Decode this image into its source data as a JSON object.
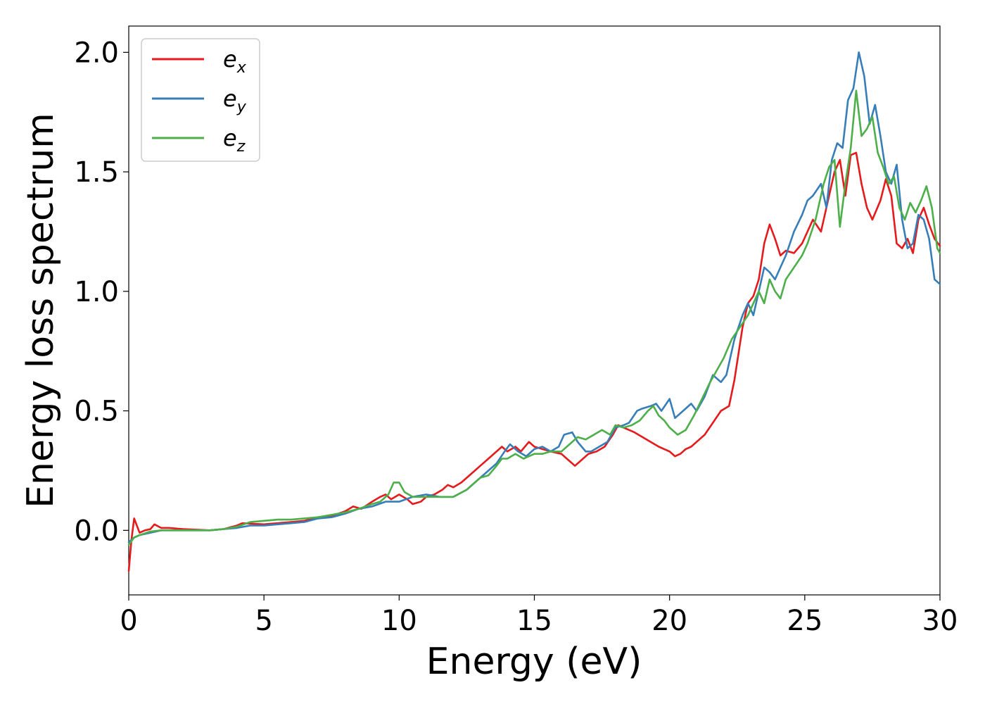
{
  "chart_data": {
    "type": "line",
    "title": "",
    "xlabel": "Energy (eV)",
    "ylabel": "Energy loss spectrum",
    "xlim": [
      0,
      30
    ],
    "ylim": [
      -0.27,
      2.11
    ],
    "xticks": [
      0,
      5,
      10,
      15,
      20,
      25,
      30
    ],
    "xtick_labels": [
      "0",
      "5",
      "10",
      "15",
      "20",
      "25",
      "30"
    ],
    "yticks": [
      0.0,
      0.5,
      1.0,
      1.5,
      2.0
    ],
    "ytick_labels": [
      "0.0",
      "0.5",
      "1.0",
      "1.5",
      "2.0"
    ],
    "grid": false,
    "legend_position": "top-left",
    "series": [
      {
        "name": "e",
        "subscript": "x",
        "color": "#e41a1c",
        "points": [
          [
            0.0,
            -0.17
          ],
          [
            0.1,
            -0.04
          ],
          [
            0.2,
            0.05
          ],
          [
            0.3,
            0.02
          ],
          [
            0.4,
            -0.01
          ],
          [
            0.6,
            0.0
          ],
          [
            0.8,
            0.005
          ],
          [
            0.95,
            0.025
          ],
          [
            1.2,
            0.01
          ],
          [
            1.5,
            0.01
          ],
          [
            2.0,
            0.005
          ],
          [
            3.0,
            0.0
          ],
          [
            3.5,
            0.005
          ],
          [
            4.0,
            0.02
          ],
          [
            4.2,
            0.03
          ],
          [
            5.0,
            0.025
          ],
          [
            5.5,
            0.03
          ],
          [
            6.0,
            0.035
          ],
          [
            6.5,
            0.04
          ],
          [
            7.0,
            0.055
          ],
          [
            7.5,
            0.06
          ],
          [
            8.0,
            0.08
          ],
          [
            8.3,
            0.1
          ],
          [
            8.6,
            0.09
          ],
          [
            9.0,
            0.12
          ],
          [
            9.3,
            0.14
          ],
          [
            9.5,
            0.15
          ],
          [
            9.7,
            0.13
          ],
          [
            10.0,
            0.15
          ],
          [
            10.3,
            0.13
          ],
          [
            10.5,
            0.11
          ],
          [
            10.8,
            0.12
          ],
          [
            11.0,
            0.14
          ],
          [
            11.3,
            0.15
          ],
          [
            11.6,
            0.17
          ],
          [
            11.8,
            0.19
          ],
          [
            12.0,
            0.18
          ],
          [
            12.3,
            0.2
          ],
          [
            12.5,
            0.22
          ],
          [
            12.8,
            0.25
          ],
          [
            13.0,
            0.27
          ],
          [
            13.3,
            0.3
          ],
          [
            13.6,
            0.33
          ],
          [
            13.8,
            0.35
          ],
          [
            14.0,
            0.33
          ],
          [
            14.3,
            0.35
          ],
          [
            14.5,
            0.33
          ],
          [
            14.8,
            0.37
          ],
          [
            15.0,
            0.35
          ],
          [
            15.3,
            0.34
          ],
          [
            15.6,
            0.33
          ],
          [
            16.0,
            0.32
          ],
          [
            16.2,
            0.3
          ],
          [
            16.5,
            0.27
          ],
          [
            16.8,
            0.3
          ],
          [
            17.0,
            0.32
          ],
          [
            17.3,
            0.33
          ],
          [
            17.6,
            0.35
          ],
          [
            17.9,
            0.4
          ],
          [
            18.1,
            0.44
          ],
          [
            18.3,
            0.43
          ],
          [
            18.5,
            0.42
          ],
          [
            18.7,
            0.41
          ],
          [
            19.0,
            0.39
          ],
          [
            19.3,
            0.37
          ],
          [
            19.6,
            0.35
          ],
          [
            19.8,
            0.34
          ],
          [
            20.0,
            0.33
          ],
          [
            20.2,
            0.31
          ],
          [
            20.4,
            0.32
          ],
          [
            20.6,
            0.34
          ],
          [
            20.8,
            0.35
          ],
          [
            21.0,
            0.37
          ],
          [
            21.3,
            0.4
          ],
          [
            21.6,
            0.45
          ],
          [
            21.9,
            0.5
          ],
          [
            22.2,
            0.52
          ],
          [
            22.4,
            0.63
          ],
          [
            22.7,
            0.85
          ],
          [
            22.9,
            0.95
          ],
          [
            23.1,
            0.98
          ],
          [
            23.3,
            1.05
          ],
          [
            23.5,
            1.2
          ],
          [
            23.7,
            1.28
          ],
          [
            23.9,
            1.22
          ],
          [
            24.1,
            1.15
          ],
          [
            24.3,
            1.17
          ],
          [
            24.6,
            1.16
          ],
          [
            24.9,
            1.2
          ],
          [
            25.1,
            1.25
          ],
          [
            25.3,
            1.3
          ],
          [
            25.6,
            1.25
          ],
          [
            25.9,
            1.4
          ],
          [
            26.1,
            1.5
          ],
          [
            26.3,
            1.55
          ],
          [
            26.5,
            1.4
          ],
          [
            26.7,
            1.57
          ],
          [
            26.9,
            1.58
          ],
          [
            27.1,
            1.45
          ],
          [
            27.3,
            1.35
          ],
          [
            27.5,
            1.3
          ],
          [
            27.8,
            1.38
          ],
          [
            28.0,
            1.47
          ],
          [
            28.2,
            1.4
          ],
          [
            28.4,
            1.2
          ],
          [
            28.6,
            1.18
          ],
          [
            28.8,
            1.22
          ],
          [
            29.0,
            1.16
          ],
          [
            29.2,
            1.3
          ],
          [
            29.4,
            1.35
          ],
          [
            29.6,
            1.28
          ],
          [
            29.8,
            1.22
          ],
          [
            30.0,
            1.19
          ]
        ]
      },
      {
        "name": "e",
        "subscript": "y",
        "color": "#377eb8",
        "points": [
          [
            0.0,
            -0.05
          ],
          [
            0.2,
            -0.03
          ],
          [
            0.4,
            -0.02
          ],
          [
            0.8,
            -0.01
          ],
          [
            1.2,
            0.0
          ],
          [
            2.0,
            0.0
          ],
          [
            3.0,
            0.0
          ],
          [
            3.5,
            0.005
          ],
          [
            4.0,
            0.01
          ],
          [
            4.5,
            0.02
          ],
          [
            5.0,
            0.02
          ],
          [
            5.5,
            0.025
          ],
          [
            6.0,
            0.03
          ],
          [
            6.5,
            0.035
          ],
          [
            7.0,
            0.05
          ],
          [
            7.5,
            0.055
          ],
          [
            8.0,
            0.07
          ],
          [
            8.5,
            0.09
          ],
          [
            9.0,
            0.1
          ],
          [
            9.5,
            0.12
          ],
          [
            10.0,
            0.12
          ],
          [
            10.5,
            0.14
          ],
          [
            11.0,
            0.15
          ],
          [
            11.5,
            0.14
          ],
          [
            12.0,
            0.14
          ],
          [
            12.5,
            0.17
          ],
          [
            12.8,
            0.2
          ],
          [
            13.0,
            0.22
          ],
          [
            13.3,
            0.25
          ],
          [
            13.6,
            0.28
          ],
          [
            13.9,
            0.33
          ],
          [
            14.1,
            0.36
          ],
          [
            14.4,
            0.33
          ],
          [
            14.7,
            0.31
          ],
          [
            15.0,
            0.34
          ],
          [
            15.3,
            0.35
          ],
          [
            15.6,
            0.33
          ],
          [
            15.9,
            0.35
          ],
          [
            16.1,
            0.4
          ],
          [
            16.4,
            0.41
          ],
          [
            16.6,
            0.37
          ],
          [
            16.9,
            0.33
          ],
          [
            17.1,
            0.33
          ],
          [
            17.4,
            0.35
          ],
          [
            17.7,
            0.37
          ],
          [
            18.0,
            0.43
          ],
          [
            18.3,
            0.44
          ],
          [
            18.5,
            0.45
          ],
          [
            18.8,
            0.5
          ],
          [
            19.0,
            0.51
          ],
          [
            19.3,
            0.52
          ],
          [
            19.5,
            0.53
          ],
          [
            19.7,
            0.5
          ],
          [
            20.0,
            0.55
          ],
          [
            20.2,
            0.47
          ],
          [
            20.5,
            0.5
          ],
          [
            20.8,
            0.53
          ],
          [
            21.0,
            0.5
          ],
          [
            21.3,
            0.56
          ],
          [
            21.6,
            0.65
          ],
          [
            21.9,
            0.62
          ],
          [
            22.1,
            0.65
          ],
          [
            22.4,
            0.8
          ],
          [
            22.7,
            0.9
          ],
          [
            22.9,
            0.95
          ],
          [
            23.1,
            0.9
          ],
          [
            23.3,
            1.0
          ],
          [
            23.5,
            1.1
          ],
          [
            23.7,
            1.08
          ],
          [
            23.9,
            1.05
          ],
          [
            24.1,
            1.1
          ],
          [
            24.3,
            1.15
          ],
          [
            24.6,
            1.25
          ],
          [
            24.9,
            1.32
          ],
          [
            25.1,
            1.38
          ],
          [
            25.3,
            1.4
          ],
          [
            25.6,
            1.45
          ],
          [
            25.8,
            1.35
          ],
          [
            26.0,
            1.55
          ],
          [
            26.2,
            1.62
          ],
          [
            26.4,
            1.6
          ],
          [
            26.6,
            1.8
          ],
          [
            26.8,
            1.85
          ],
          [
            27.0,
            2.0
          ],
          [
            27.2,
            1.9
          ],
          [
            27.4,
            1.7
          ],
          [
            27.6,
            1.78
          ],
          [
            27.8,
            1.65
          ],
          [
            28.0,
            1.5
          ],
          [
            28.2,
            1.45
          ],
          [
            28.4,
            1.53
          ],
          [
            28.6,
            1.3
          ],
          [
            28.8,
            1.18
          ],
          [
            29.0,
            1.2
          ],
          [
            29.2,
            1.32
          ],
          [
            29.4,
            1.3
          ],
          [
            29.6,
            1.22
          ],
          [
            29.8,
            1.05
          ],
          [
            30.0,
            1.03
          ]
        ]
      },
      {
        "name": "e",
        "subscript": "z",
        "color": "#4daf4a",
        "points": [
          [
            0.0,
            -0.06
          ],
          [
            0.2,
            -0.03
          ],
          [
            0.4,
            -0.02
          ],
          [
            0.8,
            -0.005
          ],
          [
            1.2,
            0.0
          ],
          [
            2.0,
            0.0
          ],
          [
            3.0,
            0.0
          ],
          [
            3.5,
            0.005
          ],
          [
            4.0,
            0.015
          ],
          [
            4.5,
            0.035
          ],
          [
            5.0,
            0.04
          ],
          [
            5.5,
            0.045
          ],
          [
            6.0,
            0.045
          ],
          [
            6.5,
            0.05
          ],
          [
            7.0,
            0.055
          ],
          [
            7.5,
            0.065
          ],
          [
            8.0,
            0.075
          ],
          [
            8.5,
            0.09
          ],
          [
            9.0,
            0.11
          ],
          [
            9.3,
            0.12
          ],
          [
            9.6,
            0.15
          ],
          [
            9.8,
            0.2
          ],
          [
            10.0,
            0.2
          ],
          [
            10.2,
            0.16
          ],
          [
            10.5,
            0.14
          ],
          [
            11.0,
            0.14
          ],
          [
            11.5,
            0.14
          ],
          [
            12.0,
            0.14
          ],
          [
            12.5,
            0.17
          ],
          [
            13.0,
            0.22
          ],
          [
            13.3,
            0.23
          ],
          [
            13.6,
            0.27
          ],
          [
            13.8,
            0.3
          ],
          [
            14.0,
            0.3
          ],
          [
            14.3,
            0.32
          ],
          [
            14.6,
            0.3
          ],
          [
            15.0,
            0.32
          ],
          [
            15.3,
            0.32
          ],
          [
            15.6,
            0.33
          ],
          [
            16.0,
            0.33
          ],
          [
            16.3,
            0.36
          ],
          [
            16.6,
            0.39
          ],
          [
            16.9,
            0.38
          ],
          [
            17.2,
            0.4
          ],
          [
            17.5,
            0.42
          ],
          [
            17.8,
            0.4
          ],
          [
            18.0,
            0.44
          ],
          [
            18.3,
            0.43
          ],
          [
            18.6,
            0.44
          ],
          [
            18.9,
            0.46
          ],
          [
            19.2,
            0.5
          ],
          [
            19.4,
            0.52
          ],
          [
            19.6,
            0.48
          ],
          [
            19.8,
            0.46
          ],
          [
            20.0,
            0.43
          ],
          [
            20.3,
            0.4
          ],
          [
            20.6,
            0.42
          ],
          [
            20.9,
            0.48
          ],
          [
            21.2,
            0.55
          ],
          [
            21.5,
            0.62
          ],
          [
            21.8,
            0.68
          ],
          [
            22.0,
            0.72
          ],
          [
            22.3,
            0.8
          ],
          [
            22.6,
            0.85
          ],
          [
            22.9,
            0.9
          ],
          [
            23.1,
            0.95
          ],
          [
            23.3,
            1.0
          ],
          [
            23.5,
            0.95
          ],
          [
            23.7,
            1.05
          ],
          [
            23.9,
            1.0
          ],
          [
            24.1,
            0.97
          ],
          [
            24.3,
            1.05
          ],
          [
            24.6,
            1.1
          ],
          [
            24.9,
            1.15
          ],
          [
            25.1,
            1.2
          ],
          [
            25.4,
            1.3
          ],
          [
            25.7,
            1.45
          ],
          [
            25.9,
            1.52
          ],
          [
            26.1,
            1.55
          ],
          [
            26.3,
            1.27
          ],
          [
            26.5,
            1.45
          ],
          [
            26.7,
            1.6
          ],
          [
            26.9,
            1.84
          ],
          [
            27.1,
            1.65
          ],
          [
            27.3,
            1.68
          ],
          [
            27.5,
            1.73
          ],
          [
            27.7,
            1.58
          ],
          [
            27.9,
            1.52
          ],
          [
            28.1,
            1.45
          ],
          [
            28.3,
            1.48
          ],
          [
            28.5,
            1.35
          ],
          [
            28.7,
            1.3
          ],
          [
            28.9,
            1.37
          ],
          [
            29.1,
            1.33
          ],
          [
            29.3,
            1.38
          ],
          [
            29.5,
            1.44
          ],
          [
            29.7,
            1.35
          ],
          [
            29.9,
            1.18
          ],
          [
            30.0,
            1.16
          ]
        ]
      }
    ]
  }
}
